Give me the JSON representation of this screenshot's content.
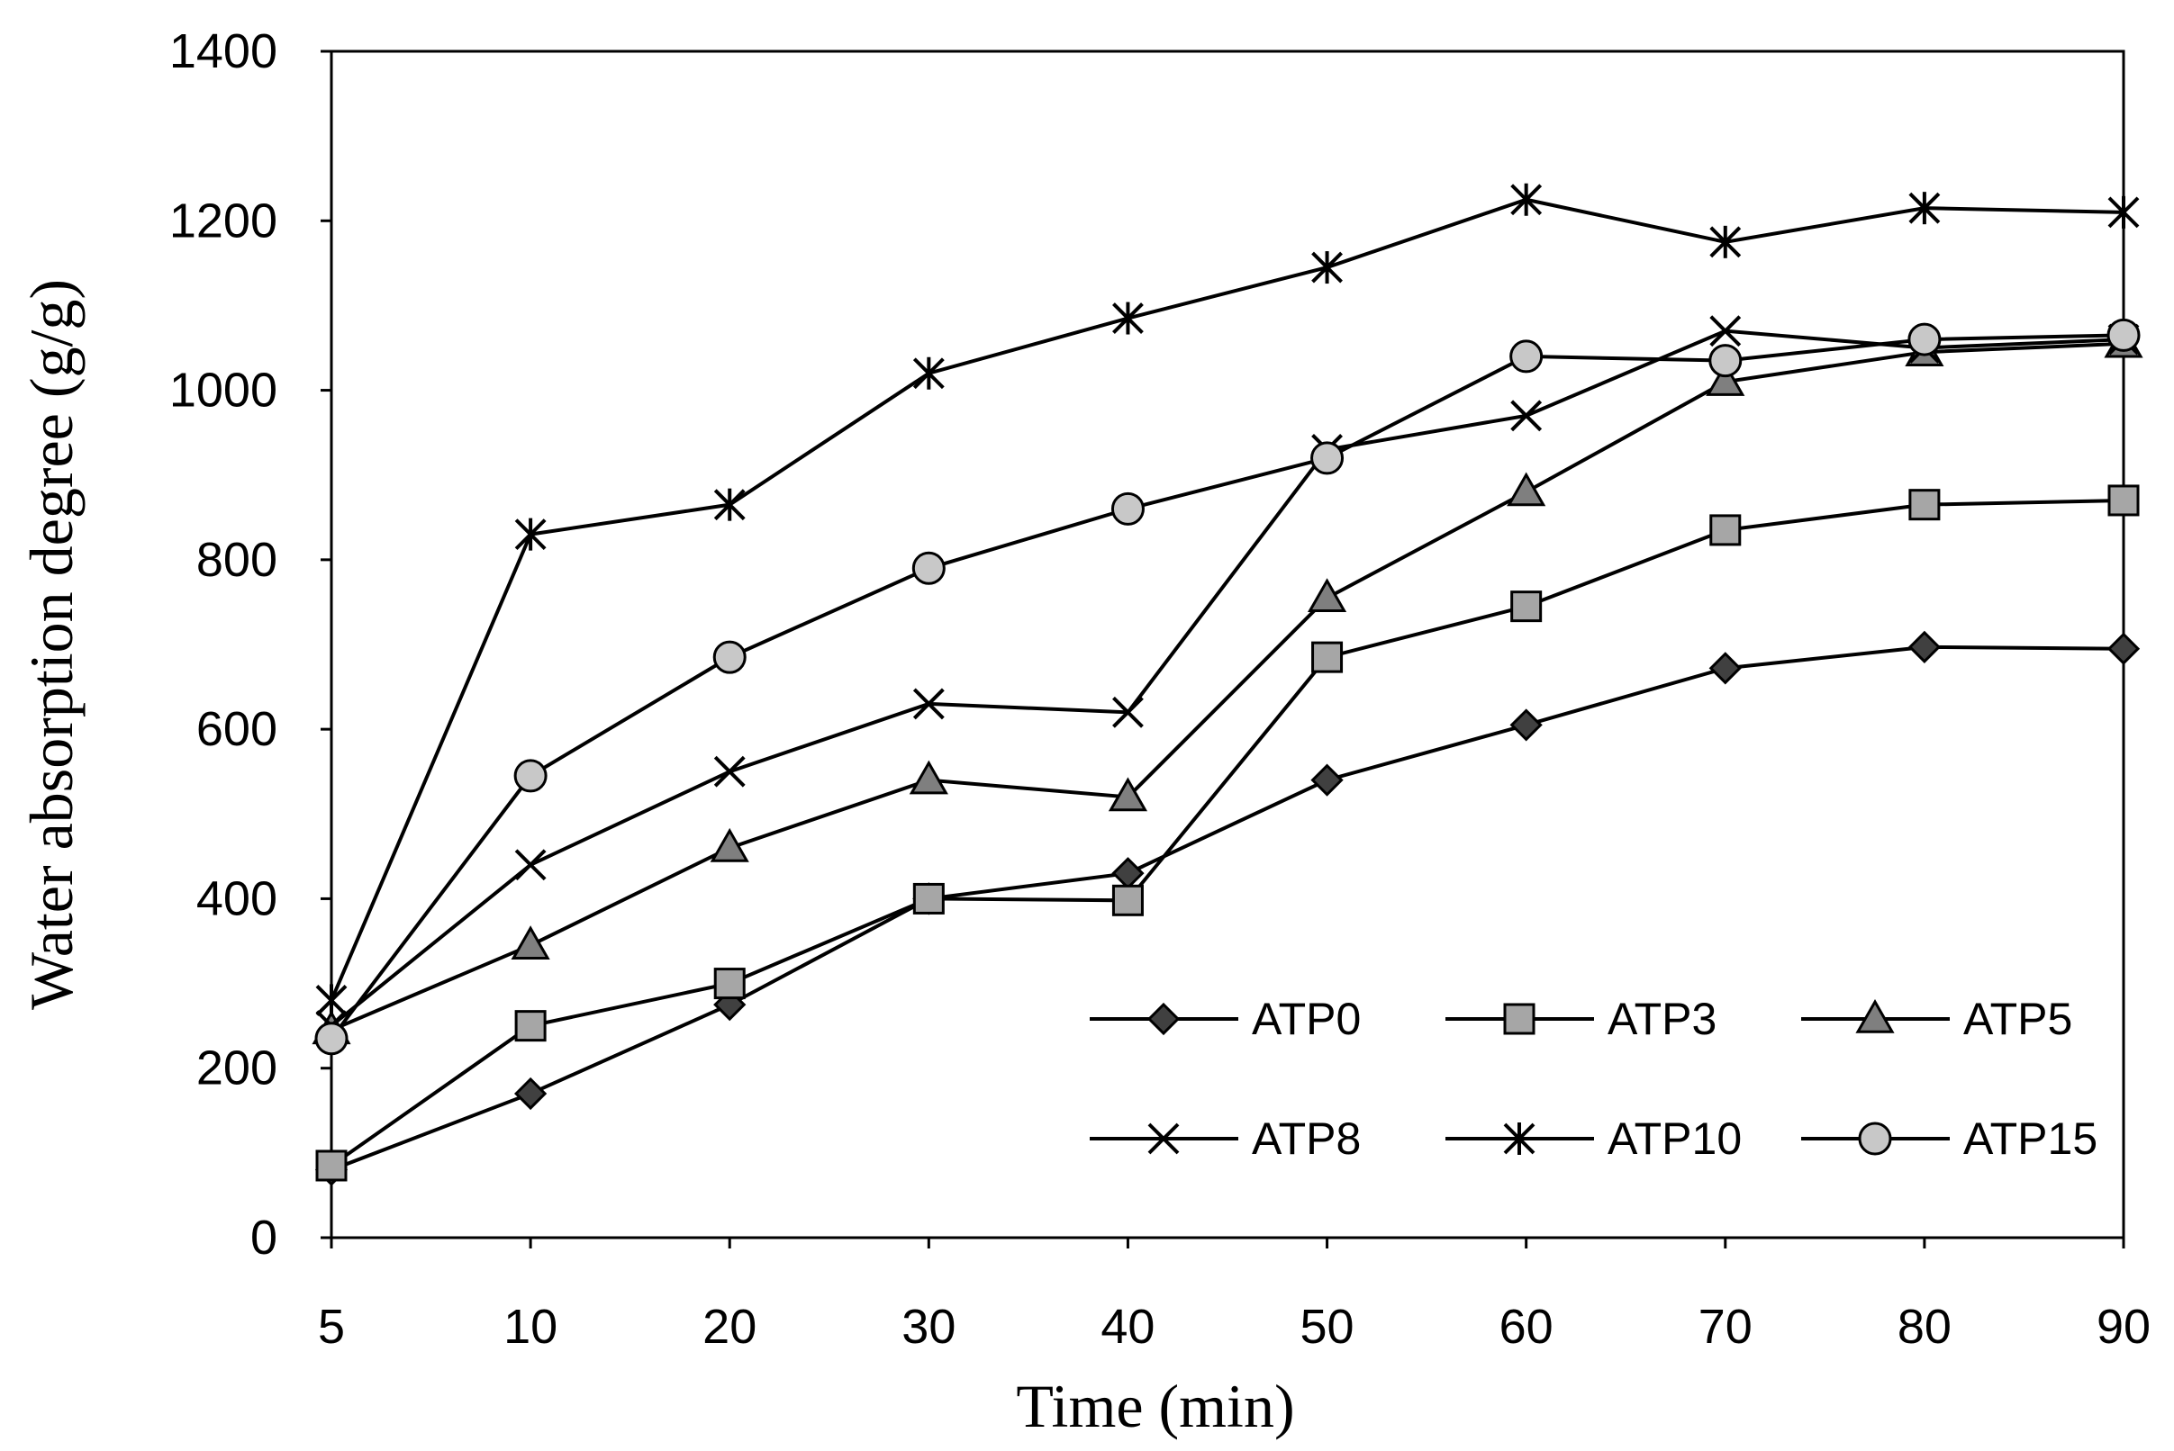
{
  "chart_data": {
    "type": "line",
    "title": "",
    "xlabel": "Time (min)",
    "ylabel": "Water absorption degree (g/g)",
    "categories": [
      "5",
      "10",
      "20",
      "30",
      "40",
      "50",
      "60",
      "70",
      "80",
      "90"
    ],
    "ylim": [
      0,
      1400
    ],
    "yticks": [
      0,
      200,
      400,
      600,
      800,
      1000,
      1200,
      1400
    ],
    "grid": false,
    "legend_position": "bottom-right",
    "series": [
      {
        "name": "ATP0",
        "marker": "diamond",
        "values": [
          80,
          170,
          275,
          400,
          430,
          540,
          605,
          672,
          697,
          695
        ]
      },
      {
        "name": "ATP3",
        "marker": "square",
        "values": [
          85,
          250,
          300,
          400,
          398,
          685,
          745,
          835,
          865,
          870
        ]
      },
      {
        "name": "ATP5",
        "marker": "triangle",
        "values": [
          245,
          345,
          460,
          540,
          520,
          755,
          880,
          1010,
          1045,
          1055
        ]
      },
      {
        "name": "ATP8",
        "marker": "x",
        "values": [
          250,
          440,
          550,
          630,
          620,
          930,
          970,
          1070,
          1050,
          1060
        ]
      },
      {
        "name": "ATP10",
        "marker": "star",
        "values": [
          280,
          830,
          865,
          1020,
          1085,
          1145,
          1225,
          1175,
          1215,
          1210
        ]
      },
      {
        "name": "ATP15",
        "marker": "circle",
        "values": [
          235,
          545,
          685,
          790,
          860,
          920,
          1040,
          1035,
          1060,
          1065
        ]
      }
    ]
  }
}
